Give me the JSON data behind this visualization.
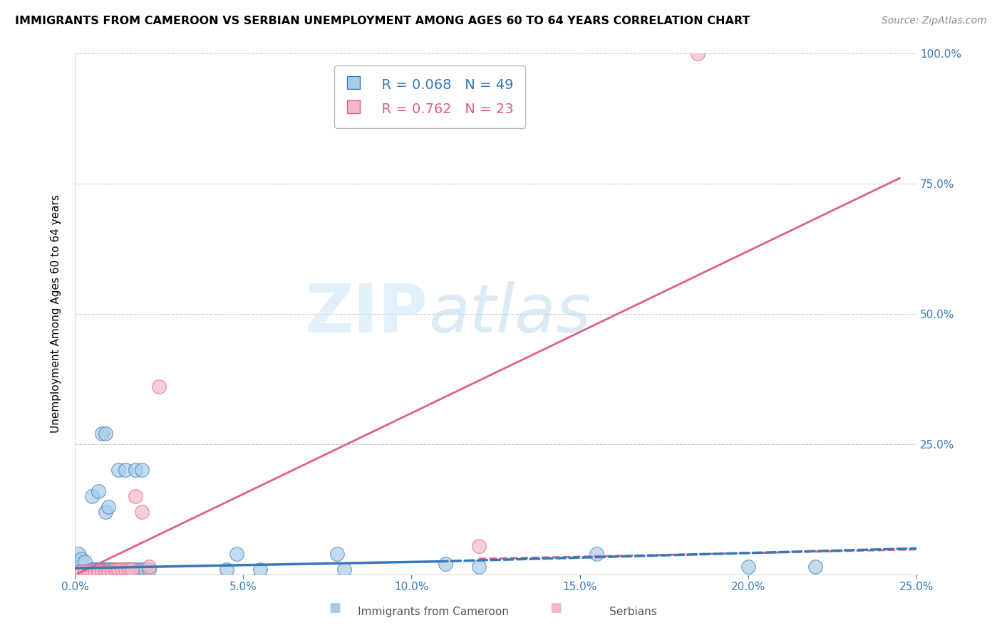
{
  "title": "IMMIGRANTS FROM CAMEROON VS SERBIAN UNEMPLOYMENT AMONG AGES 60 TO 64 YEARS CORRELATION CHART",
  "source": "Source: ZipAtlas.com",
  "ylabel_label": "Unemployment Among Ages 60 to 64 years",
  "legend1_label": "Immigrants from Cameroon",
  "legend2_label": "Serbians",
  "R1": 0.068,
  "N1": 49,
  "R2": 0.762,
  "N2": 23,
  "blue_color": "#a8cce8",
  "pink_color": "#f4b8c8",
  "blue_line_color": "#3878b8",
  "pink_line_color": "#e06080",
  "blue_scatter": [
    [
      0.001,
      0.04
    ],
    [
      0.002,
      0.03
    ],
    [
      0.003,
      0.025
    ],
    [
      0.001,
      0.005
    ],
    [
      0.002,
      0.005
    ],
    [
      0.004,
      0.005
    ],
    [
      0.005,
      0.005
    ],
    [
      0.003,
      0.005
    ],
    [
      0.006,
      0.01
    ],
    [
      0.007,
      0.01
    ],
    [
      0.008,
      0.01
    ],
    [
      0.005,
      0.01
    ],
    [
      0.006,
      0.01
    ],
    [
      0.007,
      0.01
    ],
    [
      0.009,
      0.01
    ],
    [
      0.01,
      0.01
    ],
    [
      0.01,
      0.01
    ],
    [
      0.011,
      0.01
    ],
    [
      0.012,
      0.01
    ],
    [
      0.013,
      0.01
    ],
    [
      0.014,
      0.01
    ],
    [
      0.015,
      0.01
    ],
    [
      0.016,
      0.01
    ],
    [
      0.017,
      0.01
    ],
    [
      0.018,
      0.01
    ],
    [
      0.019,
      0.01
    ],
    [
      0.02,
      0.01
    ],
    [
      0.021,
      0.01
    ],
    [
      0.022,
      0.01
    ],
    [
      0.008,
      0.27
    ],
    [
      0.009,
      0.27
    ],
    [
      0.013,
      0.2
    ],
    [
      0.015,
      0.2
    ],
    [
      0.018,
      0.2
    ],
    [
      0.02,
      0.2
    ],
    [
      0.005,
      0.15
    ],
    [
      0.007,
      0.16
    ],
    [
      0.009,
      0.12
    ],
    [
      0.01,
      0.13
    ],
    [
      0.048,
      0.04
    ],
    [
      0.078,
      0.04
    ],
    [
      0.11,
      0.02
    ],
    [
      0.155,
      0.04
    ],
    [
      0.2,
      0.015
    ],
    [
      0.22,
      0.015
    ],
    [
      0.055,
      0.01
    ],
    [
      0.08,
      0.01
    ],
    [
      0.045,
      0.01
    ],
    [
      0.12,
      0.015
    ]
  ],
  "pink_scatter": [
    [
      0.001,
      0.005
    ],
    [
      0.002,
      0.005
    ],
    [
      0.003,
      0.005
    ],
    [
      0.004,
      0.005
    ],
    [
      0.005,
      0.005
    ],
    [
      0.006,
      0.005
    ],
    [
      0.007,
      0.005
    ],
    [
      0.008,
      0.005
    ],
    [
      0.009,
      0.005
    ],
    [
      0.01,
      0.005
    ],
    [
      0.011,
      0.005
    ],
    [
      0.012,
      0.01
    ],
    [
      0.013,
      0.01
    ],
    [
      0.014,
      0.01
    ],
    [
      0.015,
      0.01
    ],
    [
      0.016,
      0.01
    ],
    [
      0.017,
      0.01
    ],
    [
      0.018,
      0.15
    ],
    [
      0.02,
      0.12
    ],
    [
      0.022,
      0.015
    ],
    [
      0.025,
      0.36
    ],
    [
      0.12,
      0.055
    ],
    [
      0.185,
      1.0
    ]
  ],
  "xlim": [
    0,
    0.25
  ],
  "ylim": [
    0,
    1.0
  ],
  "watermark_zip": "ZIP",
  "watermark_atlas": "atlas"
}
